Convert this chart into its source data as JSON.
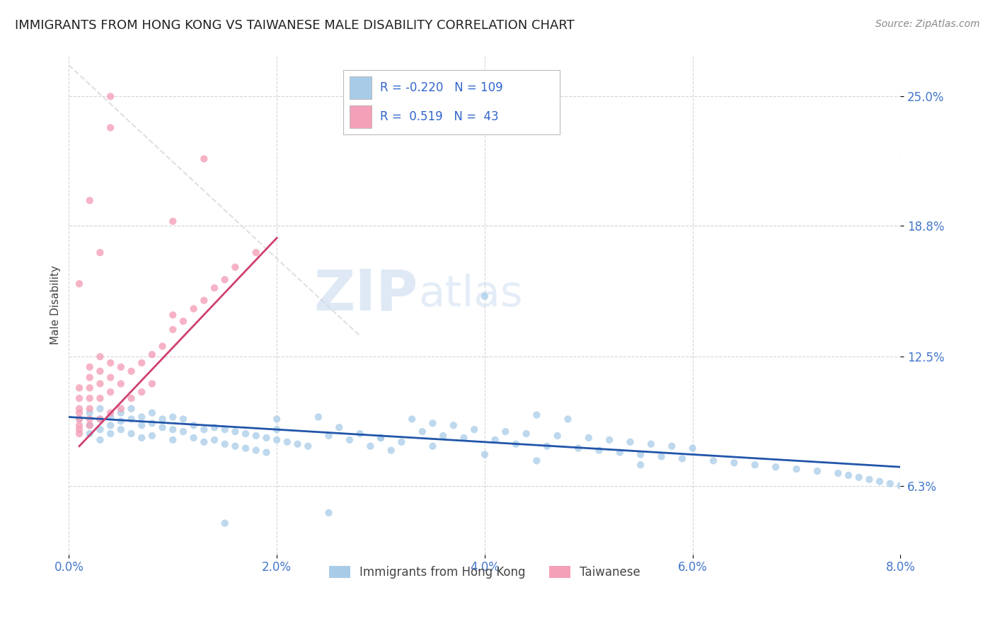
{
  "title": "IMMIGRANTS FROM HONG KONG VS TAIWANESE MALE DISABILITY CORRELATION CHART",
  "source": "Source: ZipAtlas.com",
  "ylabel": "Male Disability",
  "legend_label1": "Immigrants from Hong Kong",
  "legend_label2": "Taiwanese",
  "R1": -0.22,
  "N1": 109,
  "R2": 0.519,
  "N2": 43,
  "xlim": [
    0.0,
    0.08
  ],
  "ylim": [
    0.03,
    0.27
  ],
  "yticks": [
    0.063,
    0.125,
    0.188,
    0.25
  ],
  "ytick_labels": [
    "6.3%",
    "12.5%",
    "18.8%",
    "25.0%"
  ],
  "xticks": [
    0.0,
    0.02,
    0.04,
    0.06,
    0.08
  ],
  "xtick_labels": [
    "0.0%",
    "2.0%",
    "4.0%",
    "6.0%",
    "8.0%"
  ],
  "color1": "#a8cce8",
  "color2": "#f4a0b8",
  "trendline1_color": "#2255aa",
  "trendline2_color": "#d04070",
  "diagonal_color": "#dddddd",
  "watermark_zip": "ZIP",
  "watermark_atlas": "atlas",
  "background_color": "#ffffff",
  "grid_color": "#cccccc",
  "title_color": "#222222",
  "axis_label_color": "#444444",
  "tick_label_color": "#4477cc",
  "legend_text_color": "#3366cc",
  "blue_scatter_x": [
    0.001,
    0.002,
    0.002,
    0.002,
    0.003,
    0.003,
    0.003,
    0.003,
    0.004,
    0.004,
    0.004,
    0.005,
    0.005,
    0.005,
    0.006,
    0.006,
    0.006,
    0.007,
    0.007,
    0.007,
    0.008,
    0.008,
    0.008,
    0.009,
    0.009,
    0.01,
    0.01,
    0.01,
    0.011,
    0.011,
    0.012,
    0.012,
    0.013,
    0.013,
    0.014,
    0.014,
    0.015,
    0.015,
    0.016,
    0.016,
    0.017,
    0.017,
    0.018,
    0.018,
    0.019,
    0.019,
    0.02,
    0.02,
    0.021,
    0.022,
    0.023,
    0.024,
    0.025,
    0.026,
    0.027,
    0.028,
    0.029,
    0.03,
    0.031,
    0.032,
    0.033,
    0.034,
    0.035,
    0.036,
    0.037,
    0.038,
    0.039,
    0.04,
    0.041,
    0.042,
    0.043,
    0.044,
    0.045,
    0.046,
    0.047,
    0.048,
    0.049,
    0.05,
    0.051,
    0.052,
    0.053,
    0.054,
    0.055,
    0.056,
    0.057,
    0.058,
    0.059,
    0.06,
    0.062,
    0.064,
    0.066,
    0.068,
    0.07,
    0.072,
    0.074,
    0.075,
    0.076,
    0.077,
    0.078,
    0.079,
    0.08,
    0.04,
    0.035,
    0.045,
    0.03,
    0.055,
    0.02,
    0.025,
    0.015
  ],
  "blue_scatter_y": [
    0.095,
    0.092,
    0.098,
    0.088,
    0.1,
    0.095,
    0.09,
    0.085,
    0.096,
    0.092,
    0.088,
    0.098,
    0.094,
    0.09,
    0.1,
    0.095,
    0.088,
    0.096,
    0.092,
    0.086,
    0.098,
    0.093,
    0.087,
    0.095,
    0.091,
    0.096,
    0.09,
    0.085,
    0.095,
    0.089,
    0.092,
    0.086,
    0.09,
    0.084,
    0.091,
    0.085,
    0.09,
    0.083,
    0.089,
    0.082,
    0.088,
    0.081,
    0.087,
    0.08,
    0.086,
    0.079,
    0.085,
    0.095,
    0.084,
    0.083,
    0.082,
    0.096,
    0.087,
    0.091,
    0.085,
    0.088,
    0.082,
    0.086,
    0.08,
    0.084,
    0.095,
    0.089,
    0.093,
    0.087,
    0.092,
    0.086,
    0.09,
    0.154,
    0.085,
    0.089,
    0.083,
    0.088,
    0.097,
    0.082,
    0.087,
    0.095,
    0.081,
    0.086,
    0.08,
    0.085,
    0.079,
    0.084,
    0.078,
    0.083,
    0.077,
    0.082,
    0.076,
    0.081,
    0.075,
    0.074,
    0.073,
    0.072,
    0.071,
    0.07,
    0.069,
    0.068,
    0.067,
    0.066,
    0.065,
    0.064,
    0.063,
    0.078,
    0.082,
    0.075,
    0.086,
    0.073,
    0.09,
    0.05,
    0.045
  ],
  "pink_scatter_x": [
    0.001,
    0.001,
    0.001,
    0.001,
    0.001,
    0.001,
    0.001,
    0.001,
    0.002,
    0.002,
    0.002,
    0.002,
    0.002,
    0.002,
    0.002,
    0.003,
    0.003,
    0.003,
    0.003,
    0.003,
    0.004,
    0.004,
    0.004,
    0.004,
    0.005,
    0.005,
    0.005,
    0.006,
    0.006,
    0.007,
    0.007,
    0.008,
    0.008,
    0.009,
    0.01,
    0.01,
    0.011,
    0.012,
    0.013,
    0.014,
    0.015,
    0.016,
    0.018
  ],
  "pink_scatter_y": [
    0.088,
    0.09,
    0.092,
    0.095,
    0.098,
    0.1,
    0.105,
    0.11,
    0.092,
    0.095,
    0.1,
    0.105,
    0.11,
    0.115,
    0.12,
    0.095,
    0.105,
    0.112,
    0.118,
    0.125,
    0.098,
    0.108,
    0.115,
    0.122,
    0.1,
    0.112,
    0.12,
    0.105,
    0.118,
    0.108,
    0.122,
    0.112,
    0.126,
    0.13,
    0.138,
    0.145,
    0.142,
    0.148,
    0.152,
    0.158,
    0.162,
    0.168,
    0.175
  ],
  "pink_outlier_x": [
    0.01,
    0.013,
    0.004,
    0.002,
    0.003,
    0.004,
    0.001
  ],
  "pink_outlier_y": [
    0.19,
    0.22,
    0.235,
    0.2,
    0.175,
    0.25,
    0.16
  ]
}
